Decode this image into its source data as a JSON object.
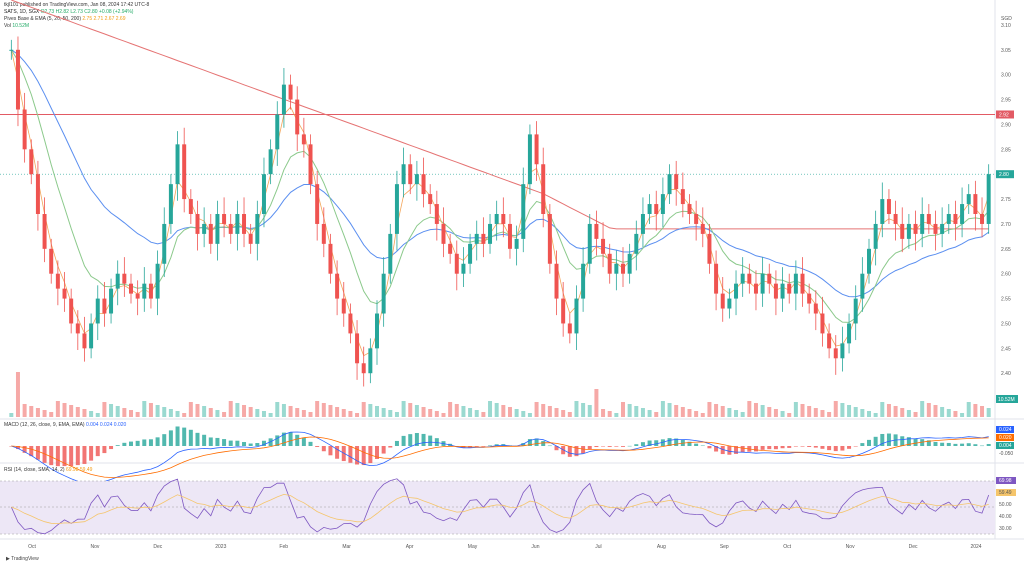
{
  "header": {
    "publisher": "tkjl101 published on TradingView.com, Jan 08, 2024 17:42 UTC-8",
    "symbol_line": "SATS, 1D, SGX",
    "ohlc": "O2.73 H2.82 L2.73 C2.80",
    "change": "+0.08 (+2.94%)",
    "ma_line": "Pives Base & EMA (5, 20, 50, 200)",
    "ma_values": "2.75  2.71  2.67  2.69",
    "vol_line": "Vol",
    "vol_value": "10.52M"
  },
  "price_axis": {
    "ticks": [
      "3.10",
      "3.05",
      "3.00",
      "2.95",
      "2.90",
      "2.85",
      "2.80",
      "2.75",
      "2.70",
      "2.65",
      "2.60",
      "2.55",
      "2.50",
      "2.45",
      "2.40",
      "2.35"
    ],
    "current_label": "2.80",
    "resistance_label": "2.92",
    "vol_label": "10.52M",
    "currency": "SGD"
  },
  "macd": {
    "title": "MACD (12, 26, close, 9, EMA, EMA)",
    "values": "0.004  0.024  0.020",
    "axis_labels": [
      "0.024",
      "0.020",
      "0.004",
      "-0.050"
    ]
  },
  "rsi": {
    "title": "RSI (14, close, SMA, 14, 2)",
    "values": "69.98  59.49",
    "axis_labels": [
      "69.98",
      "59.49",
      "50.00",
      "40.00",
      "30.00"
    ]
  },
  "time_axis": [
    "Oct",
    "Nov",
    "Dec",
    "2023",
    "Feb",
    "Mar",
    "Apr",
    "May",
    "Jun",
    "Jul",
    "Aug",
    "Sep",
    "Oct",
    "Nov",
    "Dec",
    "2024"
  ],
  "footer": "TradingView",
  "colors": {
    "up": "#26a69a",
    "down": "#ef5350",
    "ma200": "#e57373",
    "ma50": "#5b8ff0",
    "ma20": "#8bc98b",
    "ma5": "#f3a55a",
    "resistance": "#e25a64",
    "rsi_bg": "#ede7f6",
    "rsi_line": "#7e57c2"
  },
  "chart_data": {
    "type": "candlestick",
    "closes": [
      3.05,
      2.93,
      2.85,
      2.8,
      2.72,
      2.65,
      2.6,
      2.57,
      2.55,
      2.5,
      2.48,
      2.45,
      2.5,
      2.55,
      2.52,
      2.57,
      2.6,
      2.58,
      2.56,
      2.55,
      2.58,
      2.55,
      2.62,
      2.7,
      2.78,
      2.86,
      2.75,
      2.72,
      2.68,
      2.7,
      2.66,
      2.72,
      2.7,
      2.68,
      2.72,
      2.68,
      2.66,
      2.72,
      2.8,
      2.85,
      2.92,
      2.98,
      2.95,
      2.88,
      2.86,
      2.78,
      2.7,
      2.66,
      2.6,
      2.55,
      2.52,
      2.48,
      2.42,
      2.4,
      2.45,
      2.52,
      2.6,
      2.68,
      2.78,
      2.82,
      2.78,
      2.8,
      2.76,
      2.74,
      2.7,
      2.66,
      2.64,
      2.6,
      2.62,
      2.66,
      2.68,
      2.66,
      2.7,
      2.72,
      2.7,
      2.65,
      2.67,
      2.78,
      2.88,
      2.82,
      2.72,
      2.62,
      2.55,
      2.5,
      2.48,
      2.55,
      2.62,
      2.7,
      2.67,
      2.64,
      2.6,
      2.62,
      2.6,
      2.64,
      2.68,
      2.72,
      2.74,
      2.72,
      2.76,
      2.8,
      2.77,
      2.74,
      2.72,
      2.7,
      2.68,
      2.62,
      2.56,
      2.53,
      2.55,
      2.58,
      2.6,
      2.58,
      2.56,
      2.6,
      2.58,
      2.55,
      2.58,
      2.56,
      2.6,
      2.56,
      2.54,
      2.52,
      2.48,
      2.45,
      2.43,
      2.46,
      2.5,
      2.55,
      2.6,
      2.65,
      2.7,
      2.75,
      2.72,
      2.7,
      2.67,
      2.7,
      2.68,
      2.72,
      2.7,
      2.68,
      2.7,
      2.72,
      2.7,
      2.74,
      2.76,
      2.72,
      2.7,
      2.8
    ]
  }
}
